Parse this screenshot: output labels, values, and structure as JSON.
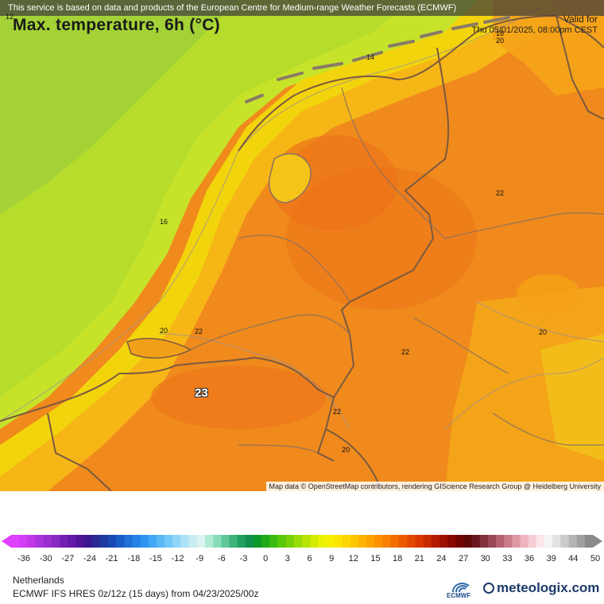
{
  "map": {
    "attribution_top": "This service is based on data and products of the European Centre for Medium-range Weather Forecasts (ECMWF)",
    "attribution_bottom": "Map data © OpenStreetMap contributors, rendering GIScience Research Group @ Heidelberg University",
    "corner_label": "12",
    "values": [
      "18",
      "20",
      "14",
      "22",
      "16",
      "20",
      "22",
      "20",
      "22",
      "22",
      "20"
    ],
    "highlight_value": "23"
  },
  "header": {
    "title": "Max. temperature, 6h (°C)",
    "valid_label": "Valid for",
    "valid_time": "Thu 05/01/2025, 08:00pm CEST"
  },
  "scale": {
    "ticks": [
      "-36",
      "-30",
      "-27",
      "-24",
      "-21",
      "-18",
      "-15",
      "-12",
      "-9",
      "-6",
      "-3",
      "0",
      "3",
      "6",
      "9",
      "12",
      "15",
      "18",
      "21",
      "24",
      "27",
      "30",
      "33",
      "36",
      "39",
      "44",
      "50"
    ],
    "colors": [
      "#e040ff",
      "#d23cf5",
      "#c238e8",
      "#ac34dc",
      "#9a2ed0",
      "#8828c2",
      "#7420b4",
      "#6418a8",
      "#501498",
      "#3c1890",
      "#2c2a94",
      "#1e3aa2",
      "#1848b4",
      "#1a5cc6",
      "#1f70d8",
      "#2482e6",
      "#2e94f0",
      "#40a8f4",
      "#58b8f6",
      "#72c8f8",
      "#90d6f8",
      "#aee2f6",
      "#c8ecf4",
      "#ddf4f2",
      "#b0ecd4",
      "#88dcb8",
      "#60c898",
      "#3cb47a",
      "#20a060",
      "#10904a",
      "#0a9a2a",
      "#20ac18",
      "#3cbc10",
      "#5ac80c",
      "#78d20a",
      "#98dc08",
      "#b6e406",
      "#d2ec04",
      "#eaf202",
      "#f6f000",
      "#fae400",
      "#fcd600",
      "#fec600",
      "#feb400",
      "#fea200",
      "#fc9000",
      "#f87e00",
      "#f26c00",
      "#ec5a00",
      "#e44800",
      "#d83800",
      "#c82a00",
      "#b41c00",
      "#9e1000",
      "#880800",
      "#700400",
      "#5e0808",
      "#6a1820",
      "#82303c",
      "#9a4856",
      "#b46070",
      "#ca7c8a",
      "#de98a4",
      "#eeb4be",
      "#f8ced6",
      "#fce6ea",
      "#f4f4f4",
      "#e2e2e2",
      "#cccccc",
      "#b6b6b6",
      "#a0a0a0",
      "#8a8a8a"
    ]
  },
  "footer": {
    "region": "Netherlands",
    "model": "ECMWF IFS HRES 0z/12z (15 days) from 04/23/2025/00z",
    "ecmwf_label": "ECMWF",
    "brand": "meteologix.com"
  }
}
